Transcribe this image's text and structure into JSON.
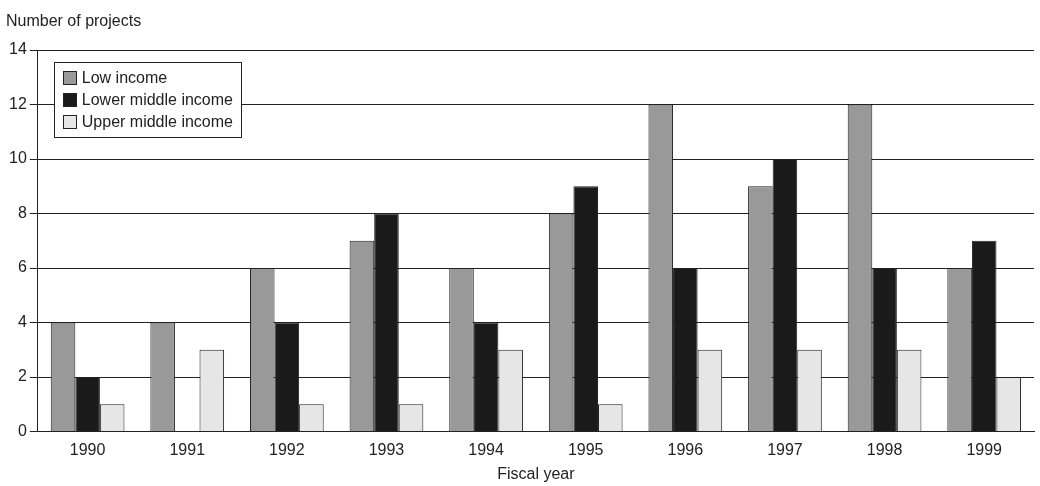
{
  "chart_data": {
    "type": "bar",
    "ylabel": "Number of projects",
    "xlabel": "Fiscal year",
    "categories": [
      "1990",
      "1991",
      "1992",
      "1993",
      "1994",
      "1995",
      "1996",
      "1997",
      "1998",
      "1999"
    ],
    "series": [
      {
        "name": "Low income",
        "color": "#999999",
        "values": [
          4,
          4,
          6,
          7,
          6,
          8,
          12,
          9,
          12,
          6
        ]
      },
      {
        "name": "Lower middle income",
        "color": "#1a1a1a",
        "values": [
          2,
          0,
          4,
          8,
          4,
          9,
          6,
          10,
          6,
          7
        ]
      },
      {
        "name": "Upper middle income",
        "color": "#e6e6e6",
        "values": [
          1,
          3,
          1,
          1,
          3,
          1,
          3,
          3,
          3,
          2
        ]
      }
    ],
    "ylim": [
      0,
      14
    ],
    "yticks": [
      0,
      2,
      4,
      6,
      8,
      10,
      12,
      14
    ],
    "grid": "y",
    "legend": "top left"
  }
}
